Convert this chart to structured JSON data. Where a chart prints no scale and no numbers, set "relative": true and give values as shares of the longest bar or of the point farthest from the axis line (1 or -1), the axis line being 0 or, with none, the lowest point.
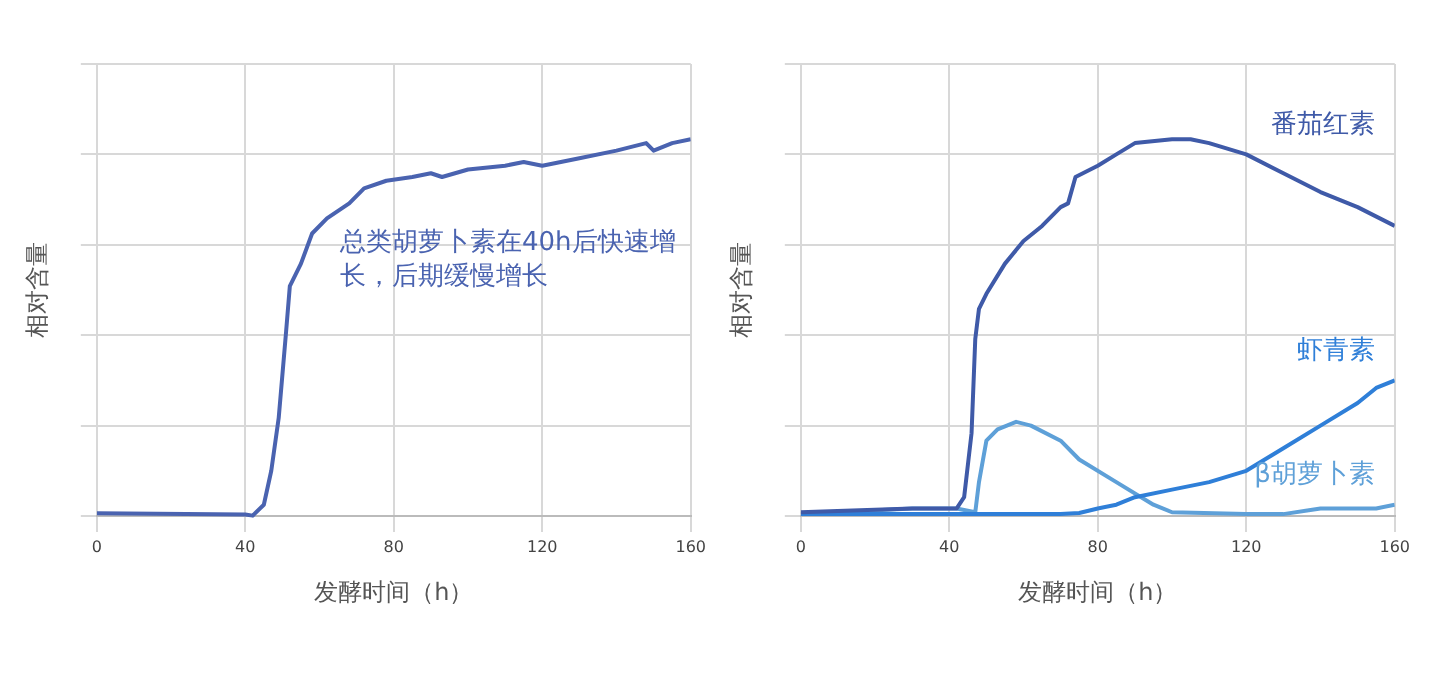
{
  "chart_data": [
    {
      "type": "line",
      "relative": true,
      "xlabel": "发酵时间（h）",
      "ylabel": "相对含量",
      "xlim": [
        0,
        160
      ],
      "xticks": [
        0,
        40,
        80,
        120,
        160
      ],
      "grid": true,
      "legend": false,
      "marker": "none",
      "line_style": "solid",
      "annotations": [
        "总类胡萝卜素在40h后快速增长，后期缓慢增长"
      ],
      "series": [
        {
          "color": "#4a63b0",
          "x": [
            0,
            40,
            42,
            45,
            47,
            49,
            51,
            52,
            55,
            58,
            62,
            68,
            72,
            78,
            85,
            90,
            93,
            100,
            110,
            115,
            120,
            130,
            140,
            148,
            150,
            155,
            160
          ],
          "values": [
            0.007,
            0.004,
            0.001,
            0.03,
            0.12,
            0.26,
            0.49,
            0.61,
            0.67,
            0.75,
            0.79,
            0.83,
            0.87,
            0.89,
            0.9,
            0.91,
            0.9,
            0.92,
            0.93,
            0.94,
            0.93,
            0.95,
            0.97,
            0.99,
            0.97,
            0.99,
            1.0
          ]
        }
      ]
    },
    {
      "type": "line",
      "relative": true,
      "xlabel": "发酵时间（h）",
      "ylabel": "相对含量",
      "xlim": [
        0,
        160
      ],
      "xticks": [
        0,
        40,
        80,
        120,
        160
      ],
      "grid": true,
      "legend": false,
      "marker": "none",
      "line_style": "solid",
      "series": [
        {
          "name": "番茄红素",
          "color": "#3f5aa8",
          "x": [
            0,
            30,
            42,
            44,
            46,
            47,
            48,
            50,
            55,
            60,
            65,
            70,
            72,
            74,
            80,
            85,
            90,
            100,
            105,
            110,
            120,
            130,
            140,
            150,
            160
          ],
          "values": [
            0.01,
            0.02,
            0.02,
            0.05,
            0.22,
            0.47,
            0.55,
            0.59,
            0.67,
            0.73,
            0.77,
            0.82,
            0.83,
            0.9,
            0.93,
            0.96,
            0.99,
            1.0,
            1.0,
            0.99,
            0.96,
            0.91,
            0.86,
            0.82,
            0.77
          ]
        },
        {
          "name": "虾青素",
          "color": "#2f7fd8",
          "x": [
            0,
            40,
            60,
            70,
            75,
            80,
            85,
            90,
            100,
            110,
            120,
            130,
            140,
            150,
            155,
            160
          ],
          "values": [
            0.005,
            0.005,
            0.005,
            0.005,
            0.008,
            0.02,
            0.03,
            0.05,
            0.07,
            0.09,
            0.12,
            0.18,
            0.24,
            0.3,
            0.34,
            0.36
          ]
        },
        {
          "name": "β胡萝卜素",
          "color": "#5ea0d8",
          "x": [
            0,
            30,
            42,
            47,
            48,
            50,
            53,
            58,
            62,
            70,
            75,
            85,
            95,
            100,
            120,
            130,
            140,
            150,
            155,
            160
          ],
          "values": [
            0.005,
            0.02,
            0.02,
            0.01,
            0.09,
            0.2,
            0.23,
            0.25,
            0.24,
            0.2,
            0.15,
            0.09,
            0.03,
            0.01,
            0.005,
            0.005,
            0.02,
            0.02,
            0.02,
            0.03
          ]
        }
      ]
    }
  ]
}
